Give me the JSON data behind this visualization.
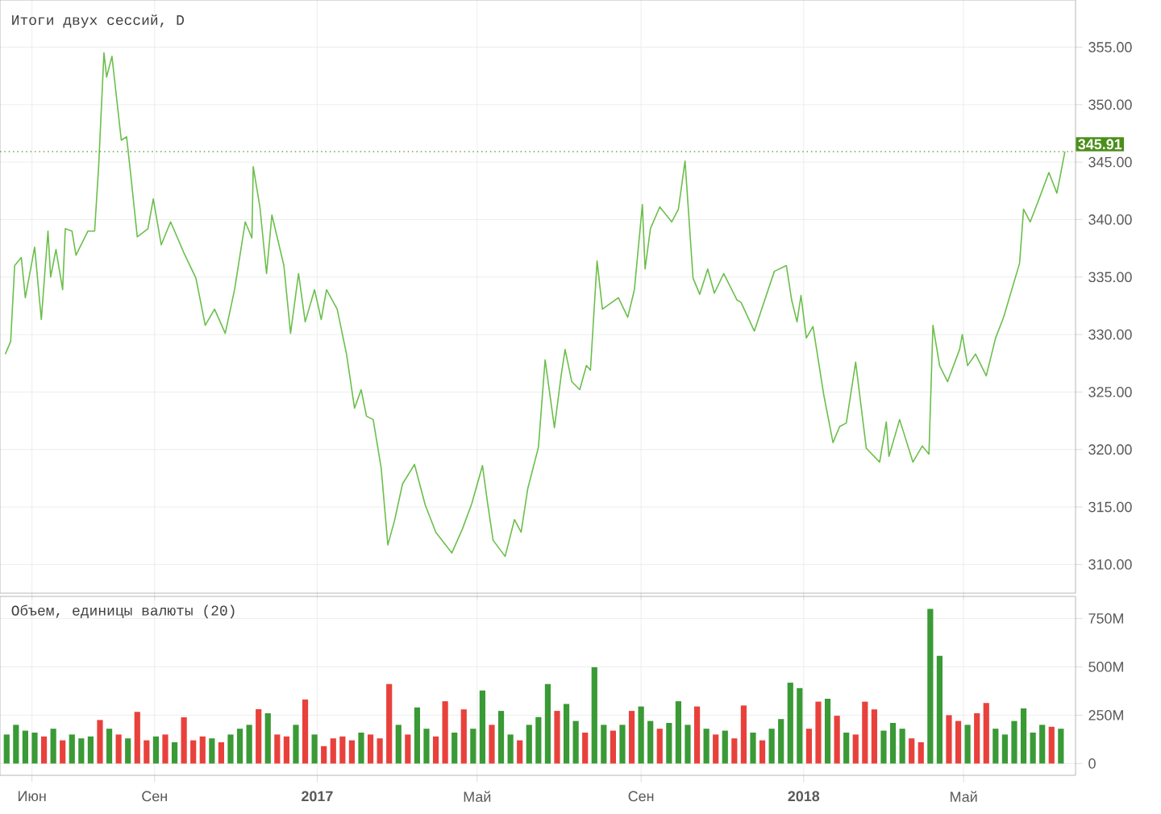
{
  "chart_data": [
    {
      "type": "line",
      "title": "Итоги двух сессий, D",
      "grid": true,
      "tick_labels": "y",
      "xlim": [
        "2016-05-08",
        "2018-07-24"
      ],
      "xticks": [
        {
          "value": "2016-06-01",
          "label": null
        },
        {
          "value": "2016-09-01",
          "label": null
        },
        {
          "value": "2017-01-01",
          "label": null
        },
        {
          "value": "2017-05-01",
          "label": null
        },
        {
          "value": "2017-09-01",
          "label": null
        },
        {
          "value": "2018-01-01",
          "label": null
        },
        {
          "value": "2018-05-01",
          "label": null
        }
      ],
      "ylim": [
        307.5,
        359.1
      ],
      "yticks": [
        {
          "value": 310,
          "label": "310.00"
        },
        {
          "value": 315,
          "label": "315.00"
        },
        {
          "value": 320,
          "label": "320.00"
        },
        {
          "value": 325,
          "label": "325.00"
        },
        {
          "value": 330,
          "label": "330.00"
        },
        {
          "value": 335,
          "label": "335.00"
        },
        {
          "value": 340,
          "label": "340.00"
        },
        {
          "value": 345,
          "label": "345.00"
        },
        {
          "value": 350,
          "label": "350.00"
        },
        {
          "value": 355,
          "label": "355.00"
        }
      ],
      "ref_lines": [
        {
          "axis": "y",
          "value": 345.91,
          "label": "345.91",
          "color": "#4a8f1a",
          "line_style": "dotted"
        }
      ],
      "x": [
        "2016-05-12",
        "2016-05-16",
        "2016-05-19",
        "2016-05-24",
        "2016-05-27",
        "2016-06-03",
        "2016-06-08",
        "2016-06-13",
        "2016-06-15",
        "2016-06-19",
        "2016-06-24",
        "2016-06-26",
        "2016-07-01",
        "2016-07-04",
        "2016-07-13",
        "2016-07-18",
        "2016-07-21",
        "2016-07-25",
        "2016-07-27",
        "2016-07-31",
        "2016-08-07",
        "2016-08-11",
        "2016-08-14",
        "2016-08-19",
        "2016-08-27",
        "2016-08-31",
        "2016-09-06",
        "2016-09-13",
        "2016-09-23",
        "2016-10-02",
        "2016-10-09",
        "2016-10-16",
        "2016-10-24",
        "2016-10-31",
        "2016-11-08",
        "2016-11-13",
        "2016-11-14",
        "2016-11-19",
        "2016-11-24",
        "2016-11-28",
        "2016-12-07",
        "2016-12-12",
        "2016-12-18",
        "2016-12-23",
        "2016-12-30",
        "2017-01-04",
        "2017-01-08",
        "2017-01-16",
        "2017-01-23",
        "2017-01-29",
        "2017-02-03",
        "2017-02-07",
        "2017-02-12",
        "2017-02-18",
        "2017-02-23",
        "2017-02-28",
        "2017-03-06",
        "2017-03-15",
        "2017-03-23",
        "2017-03-31",
        "2017-04-12",
        "2017-04-20",
        "2017-04-27",
        "2017-05-05",
        "2017-05-09",
        "2017-05-13",
        "2017-05-22",
        "2017-05-29",
        "2017-06-03",
        "2017-06-08",
        "2017-06-16",
        "2017-06-21",
        "2017-06-28",
        "2017-07-03",
        "2017-07-06",
        "2017-07-11",
        "2017-07-17",
        "2017-07-22",
        "2017-07-25",
        "2017-07-30",
        "2017-08-03",
        "2017-08-15",
        "2017-08-22",
        "2017-08-27",
        "2017-09-02",
        "2017-09-04",
        "2017-09-08",
        "2017-09-15",
        "2017-09-24",
        "2017-09-29",
        "2017-10-04",
        "2017-10-10",
        "2017-10-15",
        "2017-10-21",
        "2017-10-26",
        "2017-11-02",
        "2017-11-12",
        "2017-11-15",
        "2017-11-25",
        "2017-12-10",
        "2017-12-19",
        "2017-12-23",
        "2017-12-27",
        "2017-12-30",
        "2018-01-03",
        "2018-01-08",
        "2018-01-16",
        "2018-01-23",
        "2018-01-28",
        "2018-02-02",
        "2018-02-09",
        "2018-02-17",
        "2018-02-27",
        "2018-03-04",
        "2018-03-06",
        "2018-03-14",
        "2018-03-24",
        "2018-03-31",
        "2018-04-05",
        "2018-04-08",
        "2018-04-13",
        "2018-04-19",
        "2018-04-28",
        "2018-04-30",
        "2018-05-04",
        "2018-05-10",
        "2018-05-18",
        "2018-05-25",
        "2018-05-31",
        "2018-06-12",
        "2018-06-15",
        "2018-06-20",
        "2018-06-26",
        "2018-07-04",
        "2018-07-10",
        "2018-07-16"
      ],
      "series": [
        {
          "color": "#6abf4b",
          "values": [
            328.3,
            329.4,
            336.0,
            336.7,
            333.2,
            337.6,
            331.3,
            339.0,
            335.0,
            337.4,
            333.9,
            339.2,
            339.0,
            336.9,
            339.0,
            339.0,
            344.6,
            354.5,
            352.4,
            354.2,
            346.9,
            347.2,
            344.0,
            338.5,
            339.2,
            341.8,
            337.8,
            339.8,
            337.1,
            334.9,
            330.8,
            332.2,
            330.1,
            333.9,
            339.8,
            338.4,
            344.6,
            341.1,
            335.3,
            340.4,
            336.0,
            330.1,
            335.3,
            331.1,
            333.9,
            331.3,
            333.9,
            332.2,
            328.3,
            323.6,
            325.2,
            322.9,
            322.6,
            318.4,
            311.7,
            313.8,
            317.0,
            318.7,
            315.2,
            312.8,
            311.0,
            313.1,
            315.3,
            318.6,
            315.2,
            312.1,
            310.7,
            313.9,
            312.8,
            316.6,
            320.2,
            327.8,
            321.9,
            326.4,
            328.7,
            325.9,
            325.2,
            327.3,
            326.9,
            336.4,
            332.2,
            333.2,
            331.5,
            333.9,
            341.3,
            335.7,
            339.2,
            341.1,
            339.8,
            340.9,
            345.1,
            334.9,
            333.5,
            335.7,
            333.6,
            335.3,
            333.0,
            332.8,
            330.3,
            335.5,
            336.0,
            333.0,
            331.1,
            333.4,
            329.7,
            330.7,
            324.8,
            320.6,
            322.0,
            322.3,
            327.6,
            320.1,
            318.9,
            322.4,
            319.4,
            322.6,
            318.9,
            320.3,
            319.6,
            330.8,
            327.3,
            325.9,
            328.7,
            330.0,
            327.3,
            328.3,
            326.4,
            329.7,
            331.5,
            336.2,
            340.9,
            339.8,
            341.6,
            344.1,
            342.3,
            345.91
          ]
        }
      ]
    },
    {
      "type": "bar",
      "title": "Объем, единицы валюты (20)",
      "grid": true,
      "xlim": [
        "2016-05-08",
        "2018-07-24"
      ],
      "xticks": [
        {
          "value": "2016-06-01",
          "label": "Июн"
        },
        {
          "value": "2016-09-01",
          "label": "Сен"
        },
        {
          "value": "2017-01-01",
          "label": "2017"
        },
        {
          "value": "2017-05-01",
          "label": "Май"
        },
        {
          "value": "2017-09-01",
          "label": "Сен"
        },
        {
          "value": "2018-01-01",
          "label": "2018"
        },
        {
          "value": "2018-05-01",
          "label": "Май"
        }
      ],
      "ylim": [
        -61,
        864
      ],
      "yticks": [
        0,
        {
          "value": 250,
          "label": "250M"
        },
        {
          "value": 500,
          "label": "500M"
        },
        {
          "value": 750,
          "label": "750M"
        }
      ],
      "x": [
        "2016-05-13",
        "2016-05-20",
        "2016-05-27",
        "2016-06-03",
        "2016-06-10",
        "2016-06-17",
        "2016-06-24",
        "2016-07-01",
        "2016-07-08",
        "2016-07-15",
        "2016-07-22",
        "2016-07-29",
        "2016-08-05",
        "2016-08-12",
        "2016-08-19",
        "2016-08-26",
        "2016-09-02",
        "2016-09-09",
        "2016-09-16",
        "2016-09-23",
        "2016-09-30",
        "2016-10-07",
        "2016-10-14",
        "2016-10-21",
        "2016-10-28",
        "2016-11-04",
        "2016-11-11",
        "2016-11-18",
        "2016-11-25",
        "2016-12-02",
        "2016-12-09",
        "2016-12-16",
        "2016-12-23",
        "2016-12-30",
        "2017-01-06",
        "2017-01-13",
        "2017-01-20",
        "2017-01-27",
        "2017-02-03",
        "2017-02-10",
        "2017-02-17",
        "2017-02-24",
        "2017-03-03",
        "2017-03-10",
        "2017-03-17",
        "2017-03-24",
        "2017-03-31",
        "2017-04-07",
        "2017-04-14",
        "2017-04-21",
        "2017-04-28",
        "2017-05-05",
        "2017-05-12",
        "2017-05-19",
        "2017-05-26",
        "2017-06-02",
        "2017-06-09",
        "2017-06-16",
        "2017-06-23",
        "2017-06-30",
        "2017-07-07",
        "2017-07-14",
        "2017-07-21",
        "2017-07-28",
        "2017-08-04",
        "2017-08-11",
        "2017-08-18",
        "2017-08-25",
        "2017-09-01",
        "2017-09-08",
        "2017-09-15",
        "2017-09-22",
        "2017-09-29",
        "2017-10-06",
        "2017-10-13",
        "2017-10-20",
        "2017-10-27",
        "2017-11-03",
        "2017-11-10",
        "2017-11-17",
        "2017-11-24",
        "2017-12-01",
        "2017-12-08",
        "2017-12-15",
        "2017-12-22",
        "2017-12-29",
        "2018-01-05",
        "2018-01-12",
        "2018-01-19",
        "2018-01-26",
        "2018-02-02",
        "2018-02-09",
        "2018-02-16",
        "2018-02-23",
        "2018-03-02",
        "2018-03-09",
        "2018-03-16",
        "2018-03-23",
        "2018-03-30",
        "2018-04-06",
        "2018-04-13",
        "2018-04-20",
        "2018-04-27",
        "2018-05-04",
        "2018-05-11",
        "2018-05-18",
        "2018-05-25",
        "2018-06-01",
        "2018-06-08",
        "2018-06-15",
        "2018-06-22",
        "2018-06-29",
        "2018-07-06",
        "2018-07-13"
      ],
      "values": [
        150,
        200,
        170,
        160,
        140,
        180,
        120,
        150,
        130,
        140,
        225,
        180,
        150,
        130,
        267,
        120,
        140,
        150,
        110,
        239,
        120,
        140,
        130,
        110,
        150,
        180,
        200,
        281,
        260,
        150,
        140,
        200,
        331,
        150,
        90,
        130,
        140,
        120,
        160,
        150,
        130,
        411,
        200,
        150,
        290,
        180,
        140,
        322,
        160,
        280,
        180,
        378,
        200,
        272,
        150,
        120,
        200,
        240,
        411,
        272,
        308,
        220,
        160,
        498,
        200,
        170,
        200,
        272,
        295,
        220,
        180,
        210,
        322,
        200,
        295,
        180,
        150,
        170,
        130,
        300,
        160,
        120,
        180,
        230,
        418,
        390,
        180,
        320,
        335,
        247,
        160,
        150,
        320,
        280,
        170,
        210,
        180,
        130,
        110,
        800,
        557,
        250,
        220,
        200,
        260,
        313,
        180,
        150,
        220,
        285,
        160,
        200,
        190,
        180
      ],
      "colors": [
        "#3a9a36",
        "#3a9a36",
        "#3a9a36",
        "#3a9a36",
        "#e8413c",
        "#3a9a36",
        "#e8413c",
        "#3a9a36",
        "#3a9a36",
        "#3a9a36",
        "#e8413c",
        "#3a9a36",
        "#e8413c",
        "#3a9a36",
        "#e8413c",
        "#e8413c",
        "#3a9a36",
        "#e8413c",
        "#3a9a36",
        "#e8413c",
        "#e8413c",
        "#e8413c",
        "#3a9a36",
        "#e8413c",
        "#3a9a36",
        "#3a9a36",
        "#3a9a36",
        "#e8413c",
        "#3a9a36",
        "#e8413c",
        "#e8413c",
        "#3a9a36",
        "#e8413c",
        "#3a9a36",
        "#e8413c",
        "#e8413c",
        "#e8413c",
        "#e8413c",
        "#3a9a36",
        "#e8413c",
        "#e8413c",
        "#e8413c",
        "#3a9a36",
        "#e8413c",
        "#3a9a36",
        "#3a9a36",
        "#e8413c",
        "#e8413c",
        "#3a9a36",
        "#e8413c",
        "#3a9a36",
        "#3a9a36",
        "#e8413c",
        "#3a9a36",
        "#3a9a36",
        "#e8413c",
        "#3a9a36",
        "#3a9a36",
        "#3a9a36",
        "#e8413c",
        "#3a9a36",
        "#3a9a36",
        "#e8413c",
        "#3a9a36",
        "#3a9a36",
        "#e8413c",
        "#3a9a36",
        "#e8413c",
        "#3a9a36",
        "#3a9a36",
        "#e8413c",
        "#3a9a36",
        "#3a9a36",
        "#3a9a36",
        "#e8413c",
        "#3a9a36",
        "#e8413c",
        "#3a9a36",
        "#e8413c",
        "#e8413c",
        "#3a9a36",
        "#e8413c",
        "#3a9a36",
        "#3a9a36",
        "#3a9a36",
        "#3a9a36",
        "#e8413c",
        "#e8413c",
        "#3a9a36",
        "#e8413c",
        "#3a9a36",
        "#e8413c",
        "#e8413c",
        "#e8413c",
        "#3a9a36",
        "#3a9a36",
        "#3a9a36",
        "#e8413c",
        "#e8413c",
        "#3a9a36",
        "#3a9a36",
        "#e8413c",
        "#e8413c",
        "#3a9a36",
        "#e8413c",
        "#e8413c",
        "#3a9a36",
        "#3a9a36",
        "#3a9a36",
        "#3a9a36",
        "#3a9a36",
        "#3a9a36",
        "#e8413c",
        "#3a9a36"
      ]
    }
  ]
}
